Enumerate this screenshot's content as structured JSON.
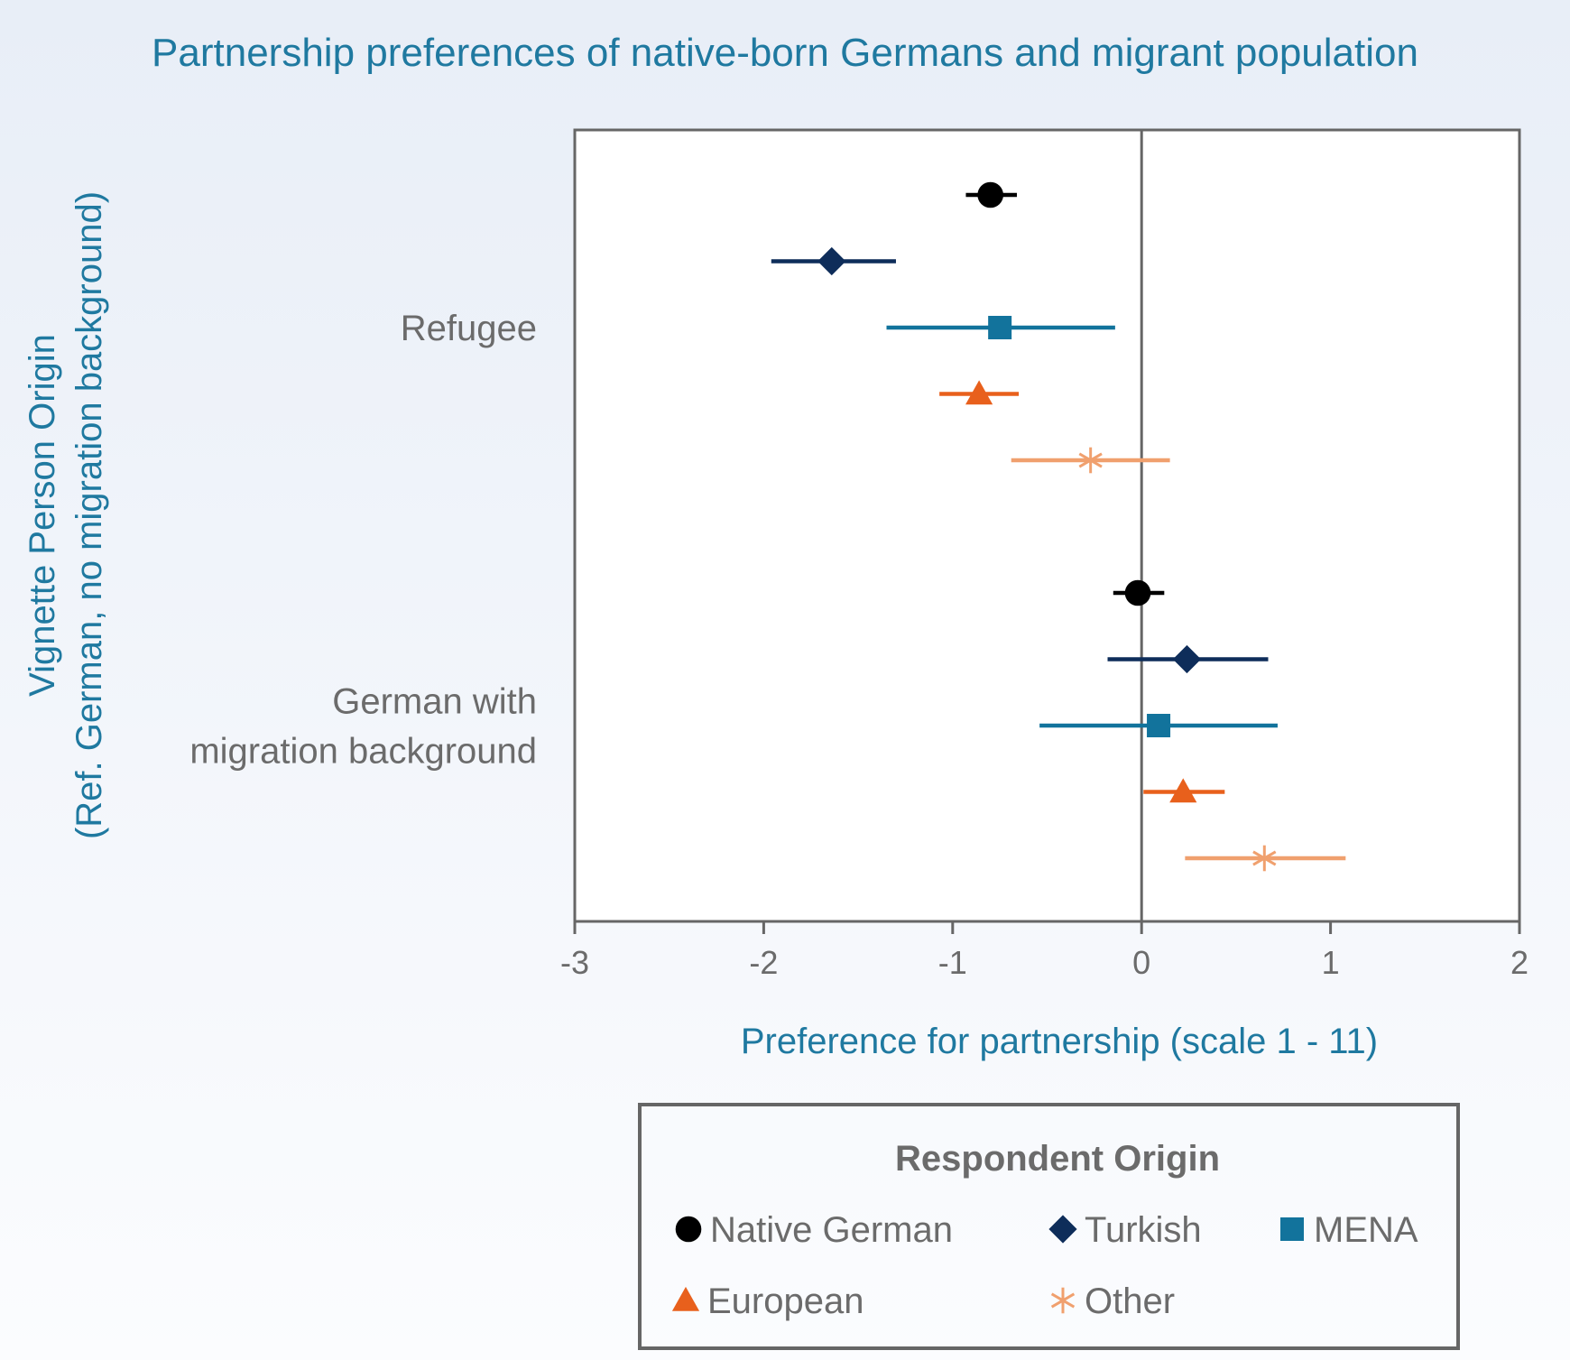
{
  "chart_data": {
    "type": "scatter",
    "subtype": "coefficient-plot",
    "title": "Partnership preferences of native-born Germans and migrant population",
    "xlabel": "Preference for partnership (scale 1 - 11)",
    "ylabel": "Vignette Person Origin",
    "ylabel_sub": "(Ref. German, no migration background)",
    "xlim": [
      -3,
      2
    ],
    "xticks": [
      -3,
      -2,
      -1,
      0,
      1,
      2
    ],
    "xtick_labels": [
      "-3",
      "-2",
      "-1",
      "0",
      "1",
      "2"
    ],
    "reference_line_x": 0,
    "grid": false,
    "categories": [
      "Refugee",
      "German with\nmigration background"
    ],
    "category_lines": [
      [
        "Refugee"
      ],
      [
        "German with",
        "migration background"
      ]
    ],
    "legend": {
      "title": "Respondent Origin",
      "position": "bottom"
    },
    "series": [
      {
        "name": "Native German",
        "color": "#000000",
        "marker": "circle",
        "points": [
          {
            "category": "Refugee",
            "estimate": -0.8,
            "ci": [
              -0.93,
              -0.66
            ]
          },
          {
            "category": "German with\nmigration background",
            "estimate": -0.02,
            "ci": [
              -0.15,
              0.12
            ]
          }
        ]
      },
      {
        "name": "Turkish",
        "color": "#0e2d5a",
        "marker": "diamond",
        "points": [
          {
            "category": "Refugee",
            "estimate": -1.64,
            "ci": [
              -1.96,
              -1.3
            ]
          },
          {
            "category": "German with\nmigration background",
            "estimate": 0.24,
            "ci": [
              -0.18,
              0.67
            ]
          }
        ]
      },
      {
        "name": "MENA",
        "color": "#12739c",
        "marker": "square",
        "points": [
          {
            "category": "Refugee",
            "estimate": -0.75,
            "ci": [
              -1.35,
              -0.14
            ]
          },
          {
            "category": "German with\nmigration background",
            "estimate": 0.09,
            "ci": [
              -0.54,
              0.72
            ]
          }
        ]
      },
      {
        "name": "European",
        "color": "#e8601c",
        "marker": "triangle",
        "points": [
          {
            "category": "Refugee",
            "estimate": -0.86,
            "ci": [
              -1.07,
              -0.65
            ]
          },
          {
            "category": "German with\nmigration background",
            "estimate": 0.22,
            "ci": [
              0.01,
              0.44
            ]
          }
        ]
      },
      {
        "name": "Other",
        "color": "#f0a06e",
        "marker": "asterisk",
        "points": [
          {
            "category": "Refugee",
            "estimate": -0.27,
            "ci": [
              -0.69,
              0.15
            ]
          },
          {
            "category": "German with\nmigration background",
            "estimate": 0.65,
            "ci": [
              0.23,
              1.08
            ]
          }
        ]
      }
    ]
  }
}
